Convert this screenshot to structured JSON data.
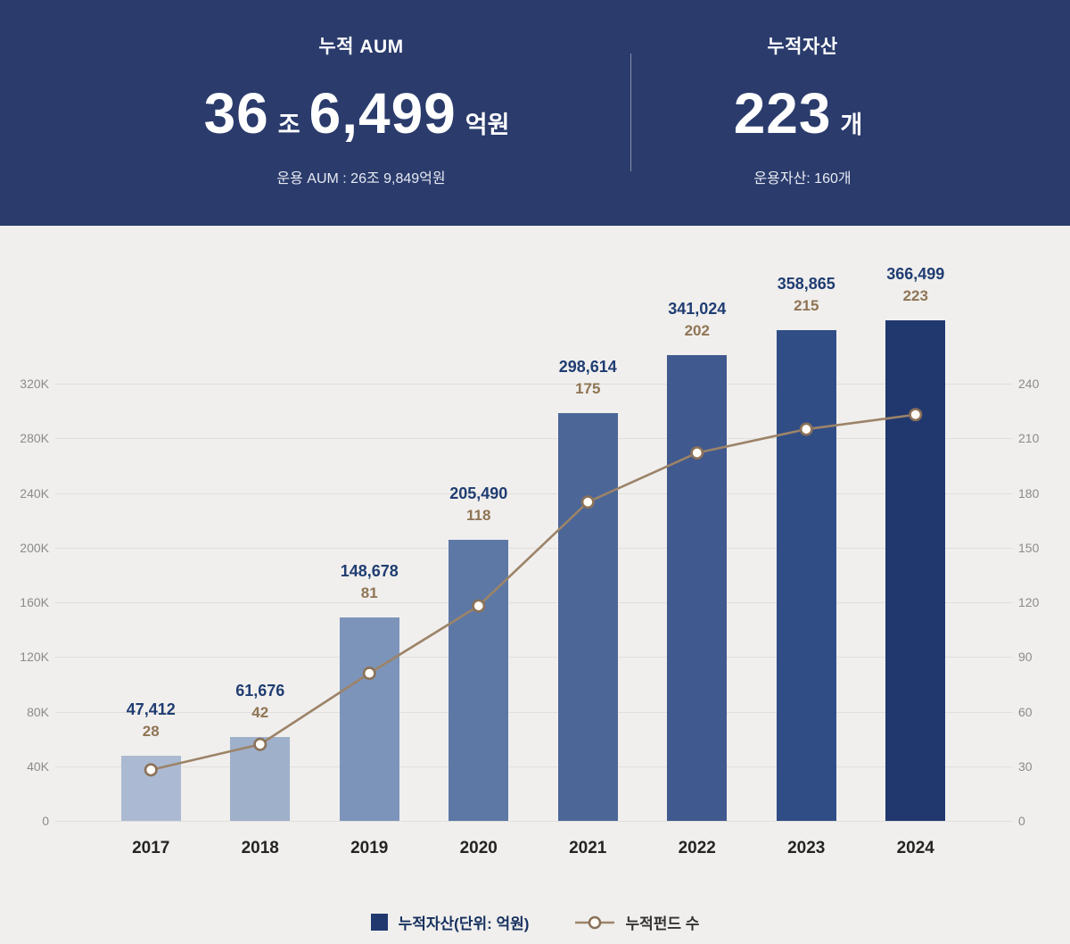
{
  "header": {
    "aum": {
      "title": "누적 AUM",
      "num1": "36",
      "unit1": "조",
      "num2": "6,499",
      "unit2": "억원",
      "sub": "운용 AUM : 26조 9,849억원"
    },
    "funds": {
      "title": "누적자산",
      "num": "223",
      "unit": "개",
      "sub": "운용자산: 160개"
    }
  },
  "chart_data": {
    "type": "bar",
    "subtype": "bar+line combo, dual axis",
    "categories": [
      "2017",
      "2018",
      "2019",
      "2020",
      "2021",
      "2022",
      "2023",
      "2024"
    ],
    "series": [
      {
        "name": "누적자산(단위: 억원)",
        "type": "bar",
        "axis": "left",
        "values": [
          47412,
          61676,
          148678,
          205490,
          298614,
          341024,
          358865,
          366499
        ],
        "colors": [
          "#abbad2",
          "#9fb0ca",
          "#7d94ba",
          "#5d78a5",
          "#4c6698",
          "#40598e",
          "#314d86",
          "#21386f"
        ]
      },
      {
        "name": "누적펀드 수",
        "type": "line",
        "axis": "right",
        "values": [
          28,
          42,
          81,
          118,
          175,
          202,
          215,
          223
        ],
        "color": "#9c8368",
        "marker_fill": "#fffdf8",
        "marker_stroke": "#8a7158"
      }
    ],
    "left_axis": {
      "ticks": [
        "0",
        "40K",
        "80K",
        "120K",
        "160K",
        "200K",
        "240K",
        "280K",
        "320K"
      ],
      "min": 0,
      "max": 320000
    },
    "right_axis": {
      "ticks": [
        "0",
        "30",
        "60",
        "90",
        "120",
        "150",
        "180",
        "210",
        "240"
      ],
      "min": 0,
      "max": 240
    },
    "value_label_color": "#203d72",
    "count_label_color": "#8f7455",
    "grid": "horizontal gridlines on",
    "legend_position": "bottom center"
  },
  "legend": {
    "bar_label": "누적자산(단위: 억원)",
    "line_label": "누적펀드 수"
  },
  "colors": {
    "header_bg": "#2a3b6c",
    "chart_bg": "#f0efed",
    "accent_navy": "#21386f",
    "accent_brown": "#9c8368"
  }
}
